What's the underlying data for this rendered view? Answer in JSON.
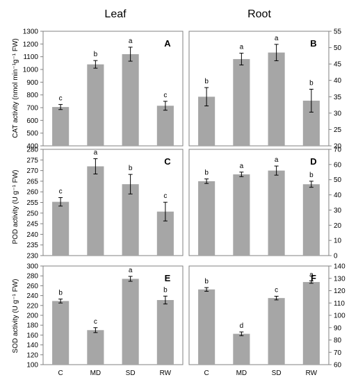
{
  "columns": [
    "Leaf",
    "Root"
  ],
  "ylabels": [
    "CAT activity (nmol min⁻¹g⁻¹ FW)",
    "POD activity (U g⁻¹ FW)",
    "SOD activity (U g⁻¹ FW)"
  ],
  "categories": [
    "C",
    "MD",
    "SD",
    "RW"
  ],
  "colors": {
    "bar": "#a6a6a6",
    "axis": "#808080"
  },
  "chart_data": [
    {
      "type": "bar",
      "panel": "A",
      "column": "Leaf",
      "ylim": [
        400,
        1300
      ],
      "ytick_step": 100,
      "categories": [
        "C",
        "MD",
        "SD",
        "RW"
      ],
      "values": [
        705,
        1040,
        1120,
        715
      ],
      "errors": [
        20,
        30,
        55,
        35
      ],
      "letters": [
        "c",
        "b",
        "a",
        "c"
      ]
    },
    {
      "type": "bar",
      "panel": "B",
      "column": "Root",
      "ylim": [
        20,
        55
      ],
      "ytick_step": 5,
      "categories": [
        "C",
        "MD",
        "SD",
        "RW"
      ],
      "values": [
        35,
        46.5,
        48.5,
        33.8
      ],
      "errors": [
        2.8,
        1.8,
        2.5,
        3.5
      ],
      "letters": [
        "b",
        "a",
        "a",
        "b"
      ]
    },
    {
      "type": "bar",
      "panel": "C",
      "column": "Leaf",
      "ylim": [
        230,
        280
      ],
      "ytick_step": 5,
      "categories": [
        "C",
        "MD",
        "SD",
        "RW"
      ],
      "values": [
        255.3,
        272,
        263.6,
        250.7
      ],
      "errors": [
        2,
        3.6,
        4.6,
        4.4
      ],
      "letters": [
        "c",
        "a",
        "b",
        "c"
      ]
    },
    {
      "type": "bar",
      "panel": "D",
      "column": "Root",
      "ylim": [
        0,
        70
      ],
      "ytick_step": 10,
      "categories": [
        "C",
        "MD",
        "SD",
        "RW"
      ],
      "values": [
        49,
        53.5,
        56,
        47
      ],
      "errors": [
        1.5,
        1.5,
        3,
        2
      ],
      "letters": [
        "b",
        "a",
        "a",
        "b"
      ]
    },
    {
      "type": "bar",
      "panel": "E",
      "column": "Leaf",
      "ylim": [
        100,
        300
      ],
      "ytick_step": 20,
      "categories": [
        "C",
        "MD",
        "SD",
        "RW"
      ],
      "values": [
        229,
        170,
        274,
        231
      ],
      "errors": [
        4,
        5,
        5,
        8
      ],
      "letters": [
        "b",
        "c",
        "a",
        "b"
      ]
    },
    {
      "type": "bar",
      "panel": "F",
      "column": "Root",
      "ylim": [
        60,
        140
      ],
      "ytick_step": 10,
      "categories": [
        "C",
        "MD",
        "SD",
        "RW"
      ],
      "values": [
        121,
        85,
        114,
        127
      ],
      "errors": [
        1.5,
        1.5,
        1.5,
        1
      ],
      "letters": [
        "b",
        "d",
        "c",
        "a"
      ]
    }
  ]
}
